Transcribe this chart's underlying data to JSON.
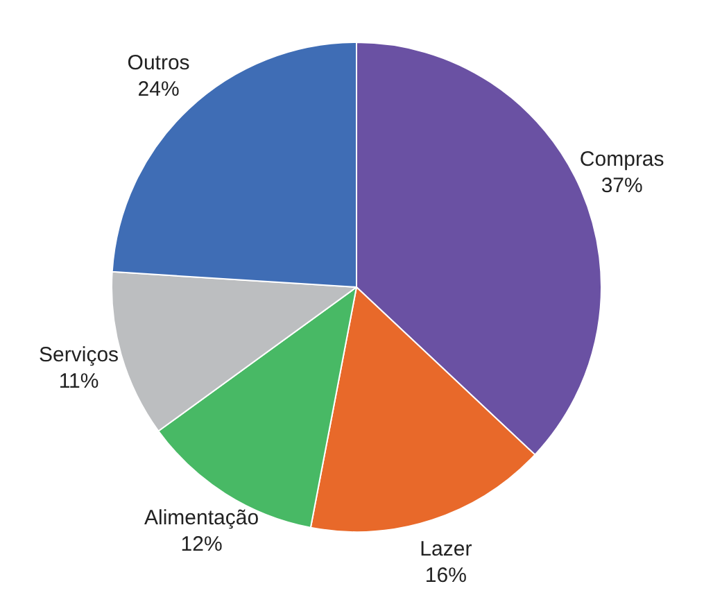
{
  "chart_data": {
    "type": "pie",
    "categories": [
      "Compras",
      "Lazer",
      "Alimentação",
      "Serviços",
      "Outros"
    ],
    "values": [
      37,
      16,
      12,
      11,
      24
    ],
    "value_labels": [
      "37%",
      "16%",
      "12%",
      "11%",
      "24%"
    ],
    "colors": [
      "#6a51a3",
      "#e8692a",
      "#48b965",
      "#bcbec0",
      "#3f6db5"
    ],
    "legend": false
  }
}
